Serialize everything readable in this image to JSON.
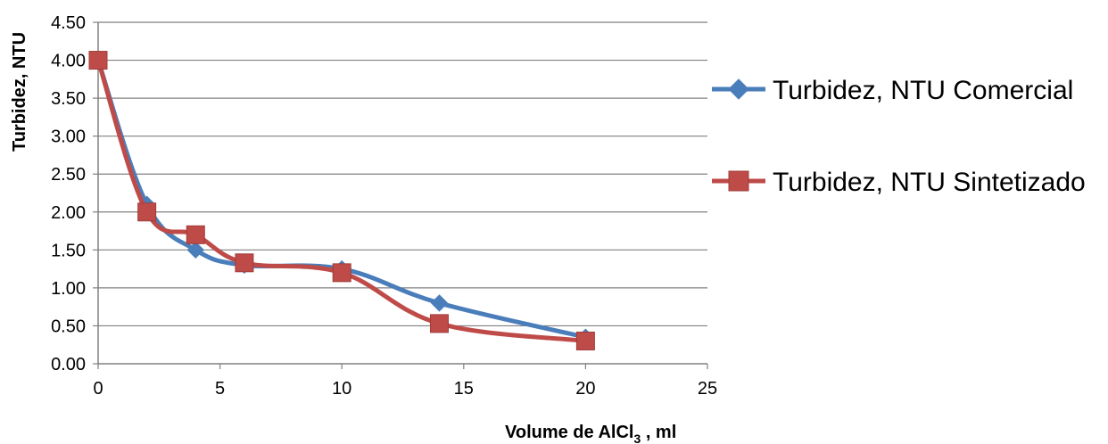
{
  "chart_data": {
    "type": "line",
    "xlabel_main": "Volume de AlCl",
    "xlabel_sub": "3",
    "xlabel_unit": " , ml",
    "ylabel": "Turbidez, NTU",
    "xlim": [
      0,
      25
    ],
    "ylim": [
      0,
      4.5
    ],
    "x_ticks": [
      0,
      5,
      10,
      15,
      20,
      25
    ],
    "y_ticks": [
      "0.00",
      "0.50",
      "1.00",
      "1.50",
      "2.00",
      "2.50",
      "3.00",
      "3.50",
      "4.00",
      "4.50"
    ],
    "grid": true,
    "legend_position": "right",
    "series": [
      {
        "name": "Turbidez, NTU Comercial",
        "color": "#4a7ebb",
        "marker": "diamond",
        "x": [
          0,
          2,
          4,
          6,
          10,
          14,
          20
        ],
        "y": [
          4.0,
          2.1,
          1.5,
          1.3,
          1.25,
          0.8,
          0.35
        ]
      },
      {
        "name": "Turbidez, NTU Sintetizado",
        "color": "#be4b48",
        "marker": "square",
        "x": [
          0,
          2,
          4,
          6,
          10,
          14,
          20
        ],
        "y": [
          4.0,
          2.0,
          1.7,
          1.33,
          1.2,
          0.53,
          0.3
        ]
      }
    ]
  }
}
